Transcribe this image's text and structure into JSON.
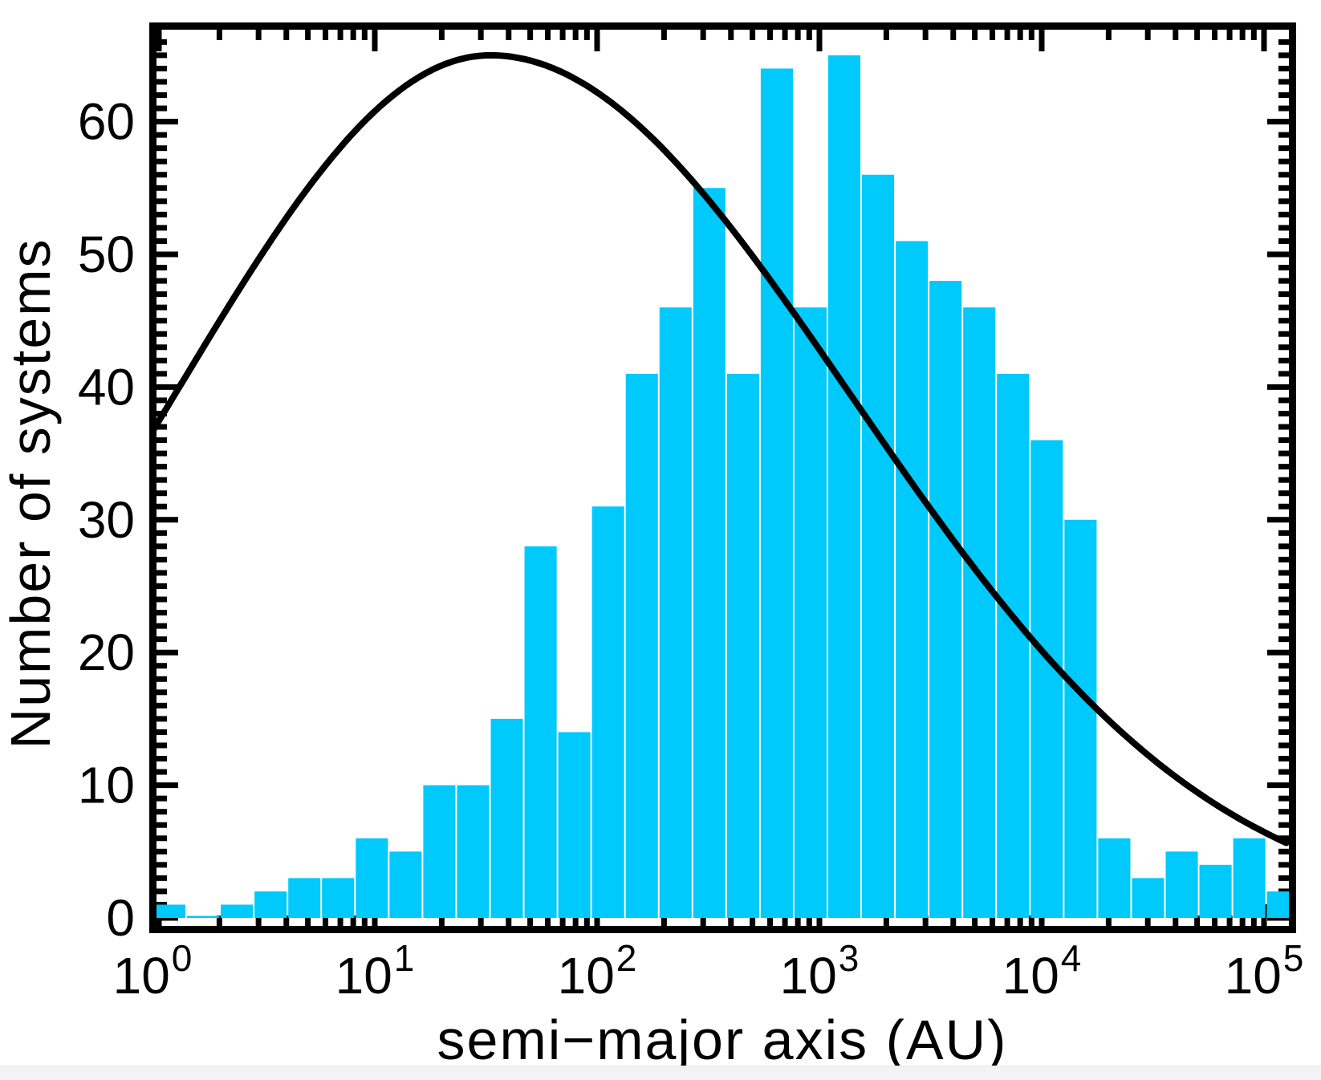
{
  "chart_data": {
    "type": "bar",
    "subtype": "log-histogram-with-model-curve",
    "title": "",
    "xlabel": "semi−major axis (AU)",
    "ylabel": "Number of systems",
    "x_scale": "log",
    "x_range_au": [
      1,
      131072
    ],
    "ylim": [
      0,
      67
    ],
    "grid": "off",
    "legend": "none",
    "x_tick_labels": [
      {
        "base": "10",
        "exp": "0"
      },
      {
        "base": "10",
        "exp": "1"
      },
      {
        "base": "10",
        "exp": "2"
      },
      {
        "base": "10",
        "exp": "3"
      },
      {
        "base": "10",
        "exp": "4"
      },
      {
        "base": "10",
        "exp": "5"
      }
    ],
    "y_tick_labels": [
      "0",
      "10",
      "20",
      "30",
      "40",
      "50",
      "60"
    ],
    "y_tick_values": [
      0,
      10,
      20,
      30,
      40,
      50,
      60
    ],
    "y_minor_tick_step": 1,
    "x_minor_ticks": "2-9 per decade",
    "bin_edges_au": [
      1,
      1.4,
      2,
      2.8,
      4,
      5.7,
      8,
      11,
      16,
      23,
      32,
      45,
      64,
      91,
      128,
      181,
      256,
      362,
      512,
      724,
      1024,
      1448,
      2048,
      2896,
      4096,
      5793,
      8192,
      11585,
      16384,
      23170,
      32768,
      46341,
      65536,
      92682,
      131072
    ],
    "values": [
      1,
      0,
      1,
      2,
      3,
      3,
      6,
      5,
      10,
      10,
      15,
      28,
      14,
      31,
      41,
      46,
      55,
      41,
      64,
      46,
      65,
      56,
      51,
      48,
      46,
      41,
      36,
      30,
      6,
      3,
      5,
      4,
      6,
      2
    ],
    "curve": {
      "name": "model-distribution-curve",
      "shape": "skewed-log-normal",
      "peak_value": 65,
      "peak_log10_au": 1.52,
      "sigma_left_dex": 1.42,
      "sigma_right_dex": 1.62,
      "value_at_left_edge": 36.6,
      "value_at_right_edge": 5.4
    },
    "colors": {
      "bar": "#00c9fb",
      "bar_separator": "#ffffff",
      "curve": "#000000",
      "axis": "#000000",
      "background": "#ffffff",
      "window_strip": "#f3f3f6"
    }
  }
}
